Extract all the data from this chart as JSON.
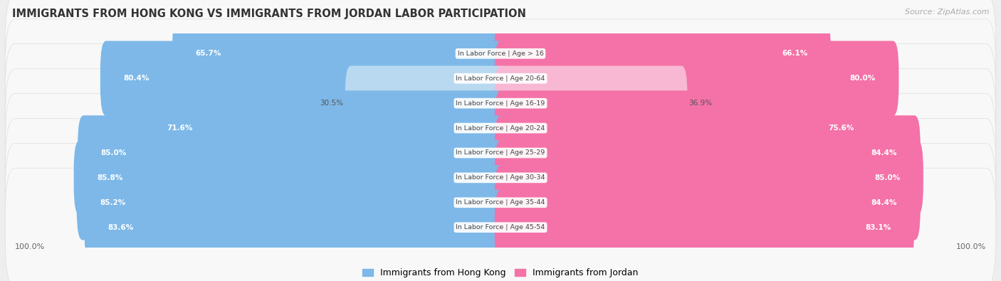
{
  "title": "IMMIGRANTS FROM HONG KONG VS IMMIGRANTS FROM JORDAN LABOR PARTICIPATION",
  "source": "Source: ZipAtlas.com",
  "categories": [
    "In Labor Force | Age > 16",
    "In Labor Force | Age 20-64",
    "In Labor Force | Age 16-19",
    "In Labor Force | Age 20-24",
    "In Labor Force | Age 25-29",
    "In Labor Force | Age 30-34",
    "In Labor Force | Age 35-44",
    "In Labor Force | Age 45-54"
  ],
  "hong_kong_values": [
    65.7,
    80.4,
    30.5,
    71.6,
    85.0,
    85.8,
    85.2,
    83.6
  ],
  "jordan_values": [
    66.1,
    80.0,
    36.9,
    75.6,
    84.4,
    85.0,
    84.4,
    83.1
  ],
  "hong_kong_color": "#7db8e8",
  "hong_kong_color_light": "#b8d9f0",
  "jordan_color": "#f472a8",
  "jordan_color_light": "#f8b8d4",
  "bg_color": "#eeeeee",
  "row_bg_color": "#f8f8f8",
  "threshold": 50,
  "legend_hk": "Immigrants from Hong Kong",
  "legend_jordan": "Immigrants from Jordan"
}
